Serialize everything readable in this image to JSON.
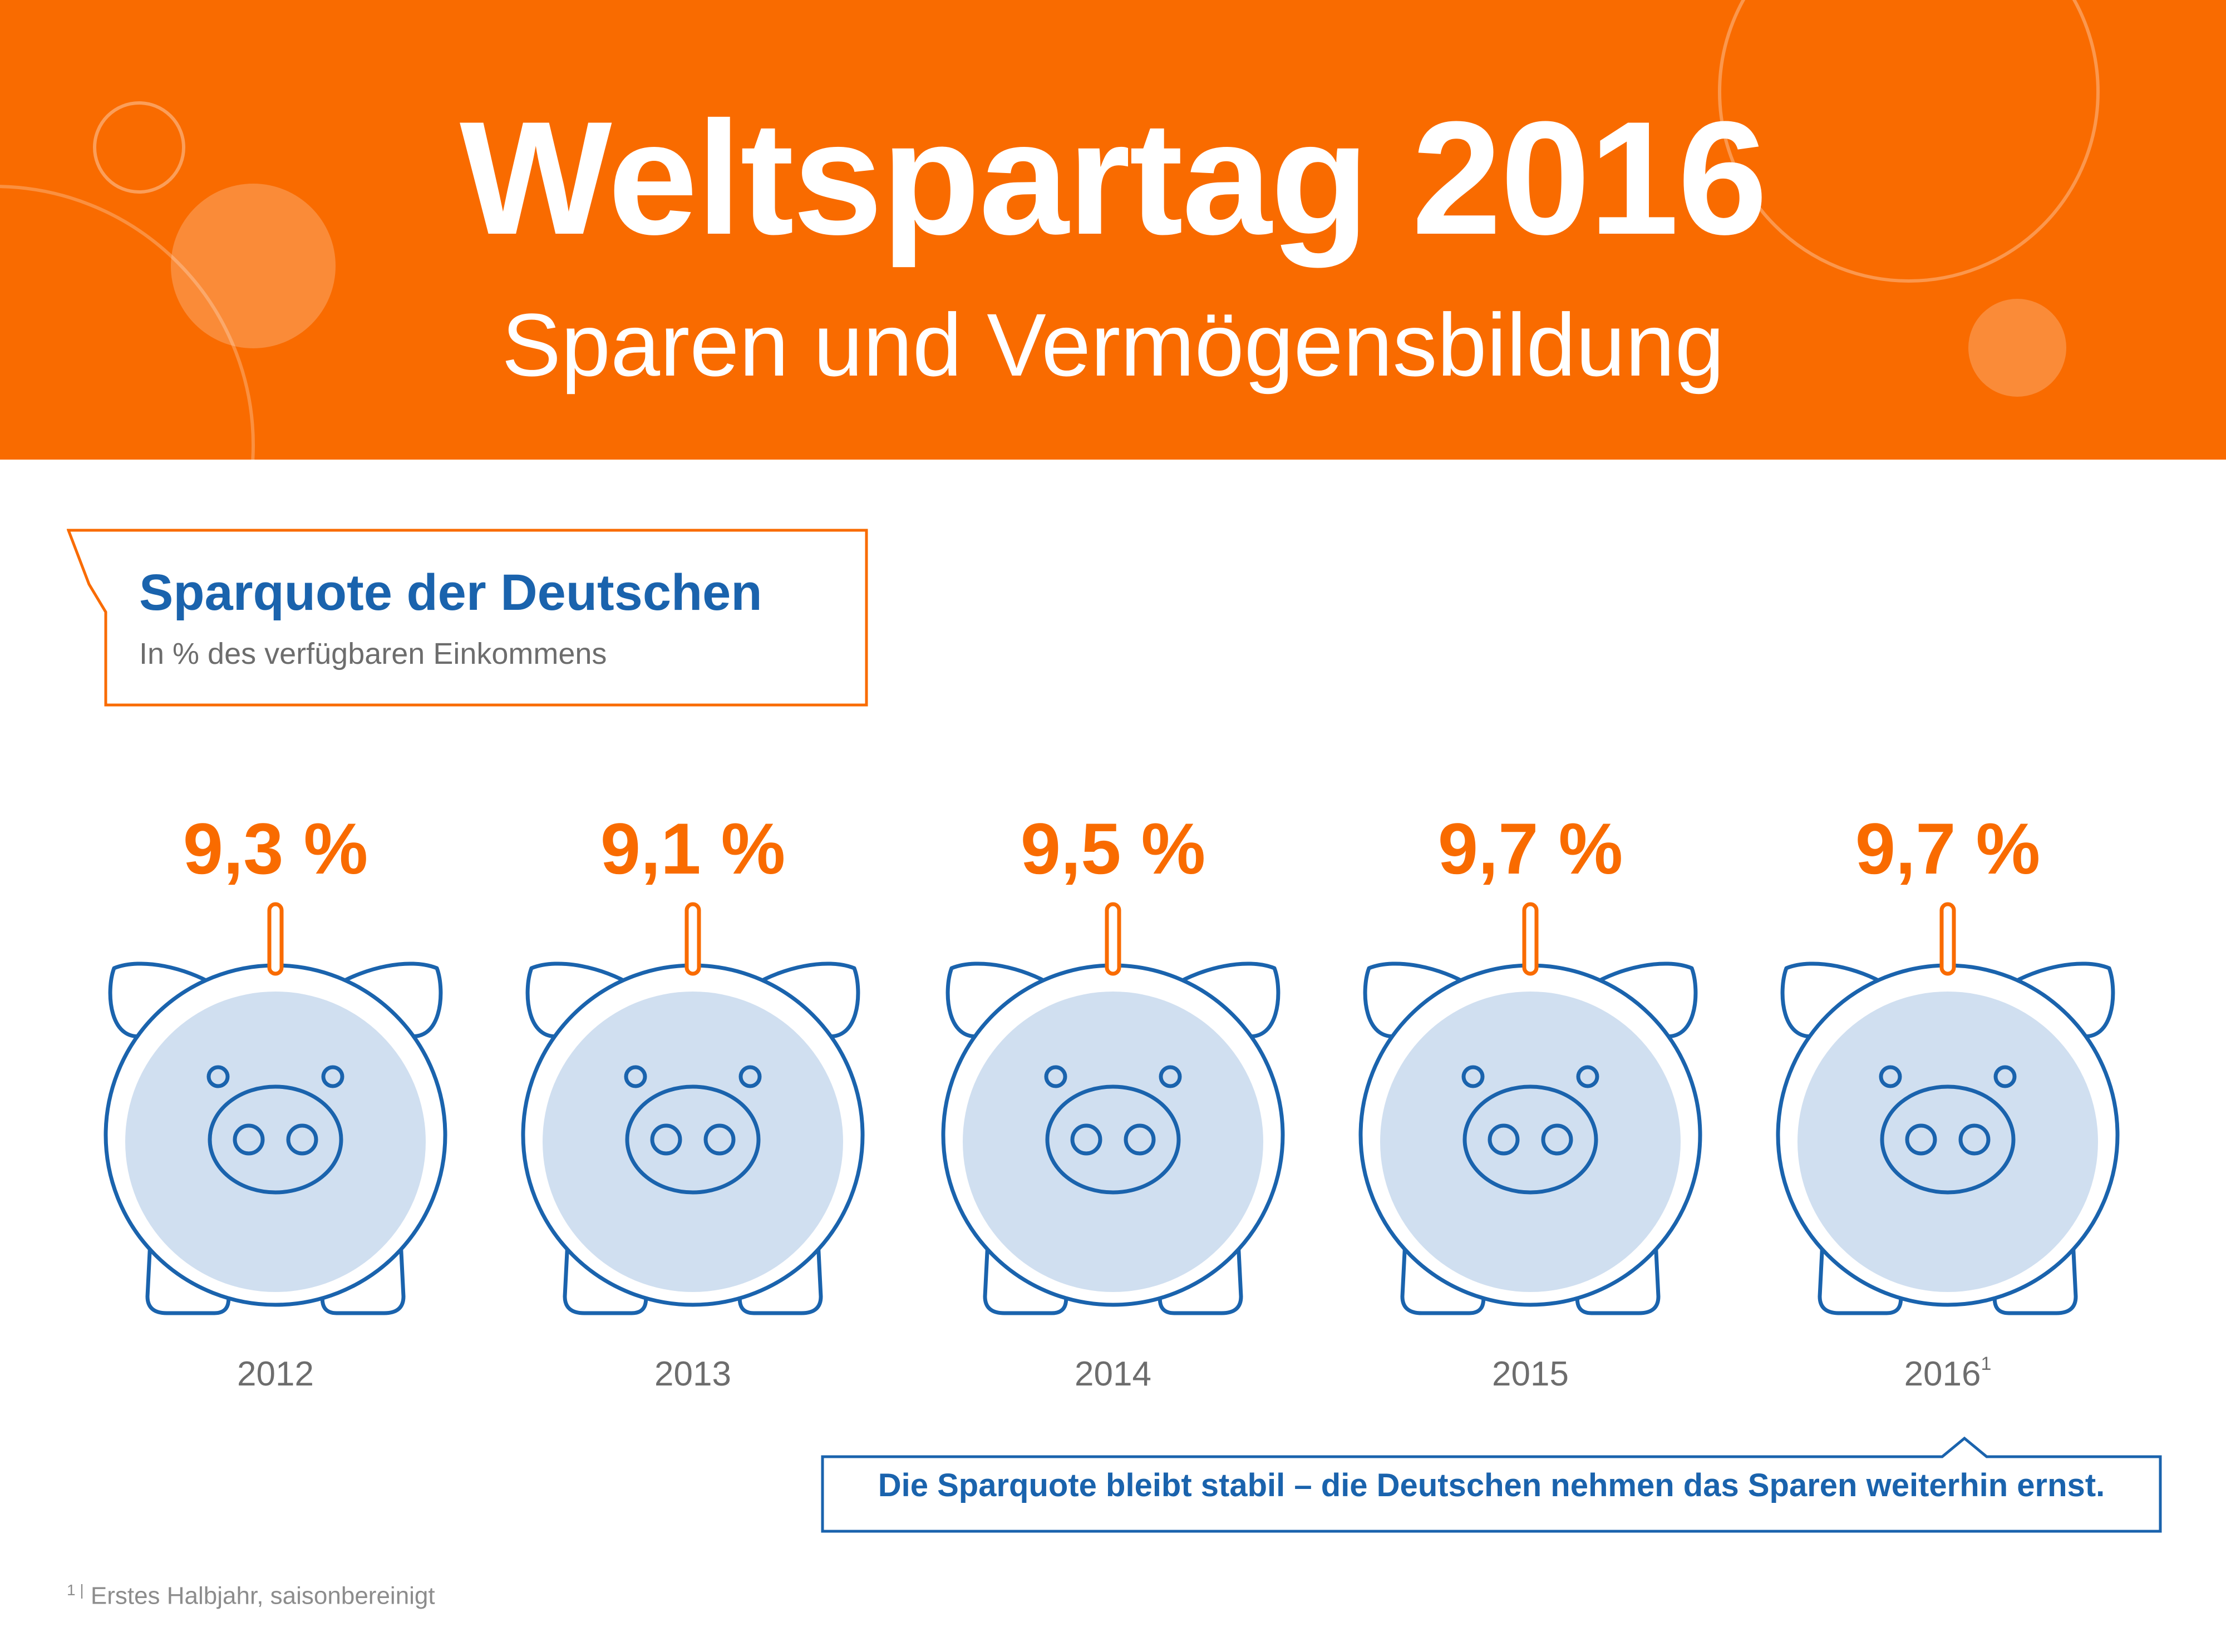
{
  "header": {
    "title": "Weltspartag 2016",
    "subtitle": "Sparen und Vermögensbildung"
  },
  "label": {
    "title": "Sparquote der Deutschen",
    "subtitle": "In % des verfügbaren Einkommens"
  },
  "chart_data": {
    "type": "bar",
    "title": "Sparquote der Deutschen",
    "ylabel": "In % des verfügbaren Einkommens",
    "categories": [
      "2012",
      "2013",
      "2014",
      "2015",
      "2016"
    ],
    "category_footnotes": [
      "",
      "",
      "",
      "",
      "1"
    ],
    "values": [
      9.3,
      9.1,
      9.5,
      9.7,
      9.7
    ],
    "value_labels": [
      "9,3 %",
      "9,1 %",
      "9,5 %",
      "9,7 %",
      "9,7 %"
    ],
    "grid": false
  },
  "callout": {
    "text": "Die Sparquote bleibt stabil – die Deutschen nehmen das Sparen weiterhin ernst."
  },
  "footnote": {
    "marker": "1 |",
    "text": "Erstes Halbjahr, saisonbereinigt"
  },
  "colors": {
    "orange": "#f96b00",
    "blue": "#1a63ad",
    "pig_fill": "#d0dff0",
    "gray_text": "#6d6d6d"
  }
}
